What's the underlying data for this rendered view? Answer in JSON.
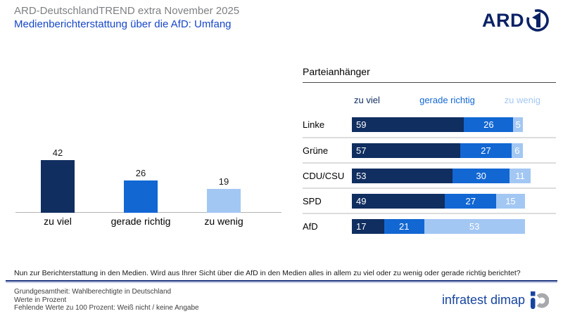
{
  "header": {
    "supertitle": "ARD-DeutschlandTREND extra November 2025",
    "title": "Medienberichterstattung über die AfD: Umfang",
    "ard_logo_text": "ARD"
  },
  "palette": {
    "dark_blue": "#102e60",
    "medium_blue": "#1267d3",
    "light_blue": "#a3c7f3",
    "title_blue": "#1747c8",
    "supertitle_gray": "#7e8083"
  },
  "chart_data": [
    {
      "type": "bar",
      "title": "",
      "categories": [
        "zu viel",
        "gerade richtig",
        "zu wenig"
      ],
      "values": [
        42,
        26,
        19
      ],
      "colors": [
        "#102e60",
        "#1267d3",
        "#a3c7f3"
      ],
      "xlabel": "",
      "ylabel": "",
      "ylim": [
        0,
        50
      ],
      "grid": false,
      "value_labels": true
    },
    {
      "type": "stacked-bar-horizontal",
      "title": "Parteianhänger",
      "categories": [
        "Linke",
        "Grüne",
        "CDU/CSU",
        "SPD",
        "AfD"
      ],
      "series": [
        {
          "name": "zu viel",
          "color": "#102e60",
          "values": [
            59,
            57,
            53,
            49,
            17
          ]
        },
        {
          "name": "gerade richtig",
          "color": "#1267d3",
          "values": [
            26,
            27,
            30,
            27,
            21
          ]
        },
        {
          "name": "zu wenig",
          "color": "#a3c7f3",
          "values": [
            5,
            6,
            11,
            15,
            53
          ]
        }
      ],
      "xlim": [
        0,
        100
      ],
      "value_labels": true
    }
  ],
  "question": "Nun zur Berichterstattung in den Medien. Wird aus Ihrer Sicht über die AfD in den Medien alles in allem zu viel oder zu wenig oder gerade richtig berichtet?",
  "footer": {
    "lines": [
      "Grundgesamtheit: Wahlberechtigte in Deutschland",
      "Werte in Prozent",
      "Fehlende Werte zu 100 Prozent: Weiß nicht / keine Angabe"
    ],
    "brand": "infratest dimap"
  }
}
